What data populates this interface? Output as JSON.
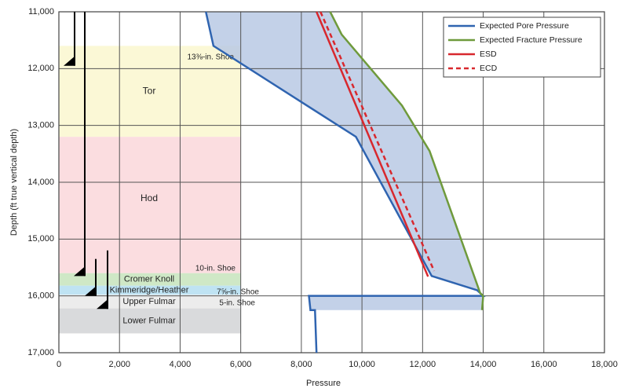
{
  "chart_data": {
    "type": "line",
    "x_label": "Pressure",
    "y_label": "Depth (ft true vertical depth)",
    "xlim": [
      0,
      18000
    ],
    "ylim": [
      11000,
      17000
    ],
    "y_inverted": true,
    "grid": true,
    "legend": "upper right",
    "xticks": [
      0,
      {
        "value": 2000,
        "label": "2,000"
      },
      {
        "value": 4000,
        "label": "4,000"
      },
      {
        "value": 6000,
        "label": "6,000"
      },
      {
        "value": 8000,
        "label": "8,000"
      },
      {
        "value": 10000,
        "label": "10,000"
      },
      {
        "value": 12000,
        "label": "12,000"
      },
      {
        "value": 14000,
        "label": "14,000"
      },
      {
        "value": 16000,
        "label": "16,000"
      },
      {
        "value": 18000,
        "label": "18,000"
      }
    ],
    "yticks": [
      {
        "value": 11000,
        "label": "11,000"
      },
      {
        "value": 12000,
        "label": "12,000"
      },
      {
        "value": 13000,
        "label": "13,000"
      },
      {
        "value": 14000,
        "label": "14,000"
      },
      {
        "value": 15000,
        "label": "15,000"
      },
      {
        "value": 16000,
        "label": "16,000"
      },
      {
        "value": 17000,
        "label": "17,000"
      }
    ],
    "series": [
      {
        "name": "Expected Pore Pressure",
        "color": "#2f64b0",
        "dashed": false,
        "x": [
          4850,
          5100,
          9800,
          12300,
          13800,
          14000,
          8250,
          8300,
          8450,
          8500
        ],
        "values": [
          11000,
          11600,
          13200,
          15650,
          15900,
          16000,
          16000,
          16250,
          16250,
          17000
        ]
      },
      {
        "name": "Expected Fracture Pressure",
        "color": "#6f9a3c",
        "dashed": false,
        "x": [
          8950,
          9330,
          11320,
          12230,
          13900,
          14000,
          13960
        ],
        "values": [
          11000,
          11400,
          12650,
          13450,
          15950,
          16000,
          16250
        ]
      },
      {
        "name": "ESD",
        "color": "#d8282e",
        "dashed": false,
        "x": [
          8500,
          12180
        ],
        "values": [
          11000,
          15660
        ]
      },
      {
        "name": "ECD",
        "color": "#d8282e",
        "dashed": true,
        "x": [
          8630,
          12380
        ],
        "values": [
          11000,
          15560
        ]
      }
    ],
    "window_color": "#b9c9e4",
    "formations": [
      {
        "name": "Tor",
        "top": 11600,
        "base": 13200,
        "color": "#fbf8d6"
      },
      {
        "name": "Hod",
        "top": 13200,
        "base": 15600,
        "color": "#fbdde0"
      },
      {
        "name": "Cromer Knoll",
        "top": 15600,
        "base": 15820,
        "color": "#cfe8c6"
      },
      {
        "name": "Kimmeridge/Heather",
        "top": 15820,
        "base": 15980,
        "color": "#bfe3f3"
      },
      {
        "name": "Upper Fulmar",
        "top": 15980,
        "base": 16220,
        "color": "#ececec"
      },
      {
        "name": "Lower Fulmar",
        "top": 16220,
        "base": 16660,
        "color": "#d9dadc"
      }
    ],
    "formation_xlim": [
      0,
      6000
    ],
    "casings": [
      {
        "label": "13⅜-in. Shoe",
        "top": 11000,
        "shoe": 11950
      },
      {
        "label": "10-in. Shoe",
        "top": 11000,
        "shoe": 15650
      },
      {
        "label": "7⅝-in. Shoe",
        "top": 15350,
        "shoe": 16000
      },
      {
        "label": "5-in. Shoe",
        "top": 15200,
        "shoe": 16230
      }
    ]
  }
}
